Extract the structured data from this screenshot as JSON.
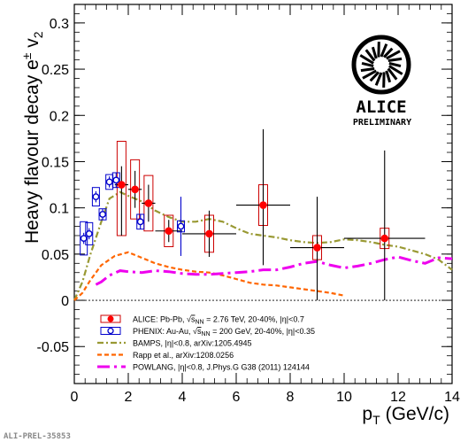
{
  "chart_data": {
    "type": "scatter",
    "xlabel": "p_T (GeV/c)",
    "xlabel_main": "p",
    "xlabel_sub": "T",
    "xlabel_unit": "(GeV/c)",
    "ylabel": "Heavy flavour decay e± v2",
    "ylabel_main": "Heavy flavour decay e",
    "ylabel_sup": "±",
    "ylabel_after": " v",
    "ylabel_sub": "2",
    "xlim": [
      0,
      14
    ],
    "ylim": [
      -0.09,
      0.32
    ],
    "x_ticks": [
      0,
      2,
      4,
      6,
      8,
      10,
      12,
      14
    ],
    "x_tick_labels": [
      "0",
      "2",
      "4",
      "6",
      "8",
      "10",
      "12",
      "14"
    ],
    "y_ticks": [
      -0.05,
      0,
      0.05,
      0.1,
      0.15,
      0.2,
      0.25,
      0.3
    ],
    "y_tick_labels": [
      "-0.05",
      "0",
      "0.05",
      "0.1",
      "0.15",
      "0.2",
      "0.25",
      "0.3"
    ],
    "grid": false,
    "legend_position": "bottom-center",
    "series": [
      {
        "name": "ALICE: Pb-Pb, √sNN = 2.76 TeV, 20-40%, |η|<0.7",
        "kind": "points",
        "color": "#ff0000",
        "box_color": "#cc0000",
        "points": [
          {
            "x": 1.75,
            "y": 0.125,
            "xerr": 0.25,
            "yerr_lo": 0.055,
            "yerr_hi": 0.02,
            "sys_lo": 0.055,
            "sys_hi": 0.047
          },
          {
            "x": 2.25,
            "y": 0.12,
            "xerr": 0.25,
            "yerr_lo": 0.02,
            "yerr_hi": 0.02,
            "sys_lo": 0.032,
            "sys_hi": 0.032
          },
          {
            "x": 2.75,
            "y": 0.105,
            "xerr": 0.25,
            "yerr_lo": 0.02,
            "yerr_hi": 0.02,
            "sys_lo": 0.03,
            "sys_hi": 0.03
          },
          {
            "x": 3.5,
            "y": 0.075,
            "xerr": 0.5,
            "yerr_lo": 0.012,
            "yerr_hi": 0.012,
            "sys_lo": 0.017,
            "sys_hi": 0.017
          },
          {
            "x": 5.0,
            "y": 0.072,
            "xerr": 1.0,
            "yerr_lo": 0.025,
            "yerr_hi": 0.025,
            "sys_lo": 0.02,
            "sys_hi": 0.02
          },
          {
            "x": 7.0,
            "y": 0.103,
            "xerr": 1.0,
            "yerr_lo": 0.065,
            "yerr_hi": 0.082,
            "sys_lo": 0.022,
            "sys_hi": 0.022
          },
          {
            "x": 9.0,
            "y": 0.057,
            "xerr": 1.0,
            "yerr_lo": 0.057,
            "yerr_hi": 0.055,
            "sys_lo": 0.013,
            "sys_hi": 0.013
          },
          {
            "x": 11.5,
            "y": 0.067,
            "xerr": 1.5,
            "yerr_lo": 0.067,
            "yerr_hi": 0.095,
            "sys_lo": 0.011,
            "sys_hi": 0.011
          }
        ]
      },
      {
        "name": "PHENIX: Au-Au, √sNN = 200 GeV, 20-40%, |η|<0.35",
        "kind": "points",
        "color": "#0000cc",
        "points": [
          {
            "x": 0.35,
            "y": 0.067,
            "yerr": 0.006,
            "sys": 0.018
          },
          {
            "x": 0.55,
            "y": 0.072,
            "yerr": 0.006,
            "sys": 0.012
          },
          {
            "x": 0.8,
            "y": 0.112,
            "yerr": 0.006,
            "sys": 0.01
          },
          {
            "x": 1.05,
            "y": 0.093,
            "yerr": 0.006,
            "sys": 0.006
          },
          {
            "x": 1.3,
            "y": 0.128,
            "yerr": 0.006,
            "sys": 0.008
          },
          {
            "x": 1.55,
            "y": 0.13,
            "yerr": 0.008,
            "sys": 0.008
          },
          {
            "x": 2.45,
            "y": 0.085,
            "yerr": 0.008,
            "sys": 0.008
          },
          {
            "x": 3.95,
            "y": 0.08,
            "yerr": 0.032,
            "sys": 0.006
          }
        ]
      },
      {
        "name": "BAMPS, |η|<0.8, arXiv:1205.4945",
        "kind": "line",
        "color": "#999933",
        "dash": "dashdot",
        "x": [
          0,
          0.3,
          0.6,
          1.0,
          1.3,
          1.7,
          2.0,
          2.5,
          3.0,
          3.5,
          4.0,
          4.5,
          5.0,
          5.5,
          6.0,
          6.5,
          7.0,
          7.5,
          8.0,
          8.5,
          9.0,
          9.5,
          10.0,
          10.5,
          11.0,
          11.5,
          12.0,
          12.5,
          13.0,
          13.5,
          14.0
        ],
        "y": [
          0.0,
          0.02,
          0.05,
          0.085,
          0.11,
          0.117,
          0.113,
          0.107,
          0.097,
          0.09,
          0.085,
          0.085,
          0.088,
          0.085,
          0.078,
          0.072,
          0.07,
          0.068,
          0.065,
          0.063,
          0.062,
          0.063,
          0.066,
          0.065,
          0.063,
          0.06,
          0.058,
          0.054,
          0.05,
          0.044,
          0.033
        ]
      },
      {
        "name": "Rapp et al., arXiv:1208.0256",
        "kind": "line",
        "color": "#ff6600",
        "dash": "dash",
        "x": [
          0,
          0.3,
          0.6,
          1.0,
          1.5,
          2.0,
          2.5,
          3.0,
          3.5,
          4.0,
          4.5,
          5.0,
          5.5,
          6.0,
          6.5,
          7.0,
          7.5,
          8.0,
          8.5,
          9.0,
          9.5,
          10.0
        ],
        "y": [
          0.0,
          0.008,
          0.022,
          0.038,
          0.048,
          0.052,
          0.046,
          0.04,
          0.036,
          0.033,
          0.031,
          0.03,
          0.027,
          0.023,
          0.019,
          0.017,
          0.016,
          0.014,
          0.012,
          0.01,
          0.008,
          0.005
        ]
      },
      {
        "name": "POWLANG, |η|<0.8, J.Phys.G G38 (2011) 124144",
        "kind": "line",
        "color": "#ee00ee",
        "dash": "longdashdot",
        "x": [
          0.8,
          1.0,
          1.3,
          1.7,
          2.0,
          2.5,
          3.0,
          3.5,
          4.0,
          4.5,
          5.0,
          5.5,
          6.0,
          6.5,
          7.0,
          7.5,
          8.0,
          8.5,
          9.0,
          9.5,
          10.0,
          10.5,
          11.0,
          11.5,
          12.0,
          12.5,
          13.0,
          13.5,
          14.0
        ],
        "y": [
          0.017,
          0.02,
          0.027,
          0.032,
          0.031,
          0.03,
          0.032,
          0.031,
          0.029,
          0.028,
          0.028,
          0.029,
          0.03,
          0.031,
          0.033,
          0.033,
          0.036,
          0.04,
          0.042,
          0.038,
          0.035,
          0.037,
          0.04,
          0.044,
          0.047,
          0.043,
          0.04,
          0.046,
          0.045
        ]
      }
    ],
    "legend_entries": [
      {
        "pre": "ALICE: Pb-Pb, ",
        "root": "√",
        "s": "s",
        "sub": "NN",
        "post": " = 2.76 TeV, 20-40%, |η|<0.7"
      },
      {
        "pre": "PHENIX: Au-Au, ",
        "root": "√",
        "s": "s",
        "sub": "NN",
        "post": " = 200 GeV, 20-40%, |η|<0.35"
      },
      {
        "text": "BAMPS, |η|<0.8, arXiv:1205.4945"
      },
      {
        "text": "Rapp et al., arXiv:1208.0256"
      },
      {
        "text": "POWLANG,  |η|<0.8, J.Phys.G G38 (2011) 124144"
      }
    ]
  },
  "logo": {
    "big": "ALICE",
    "small": "PRELIMINARY"
  },
  "watermark": "ALI-PREL-35853"
}
